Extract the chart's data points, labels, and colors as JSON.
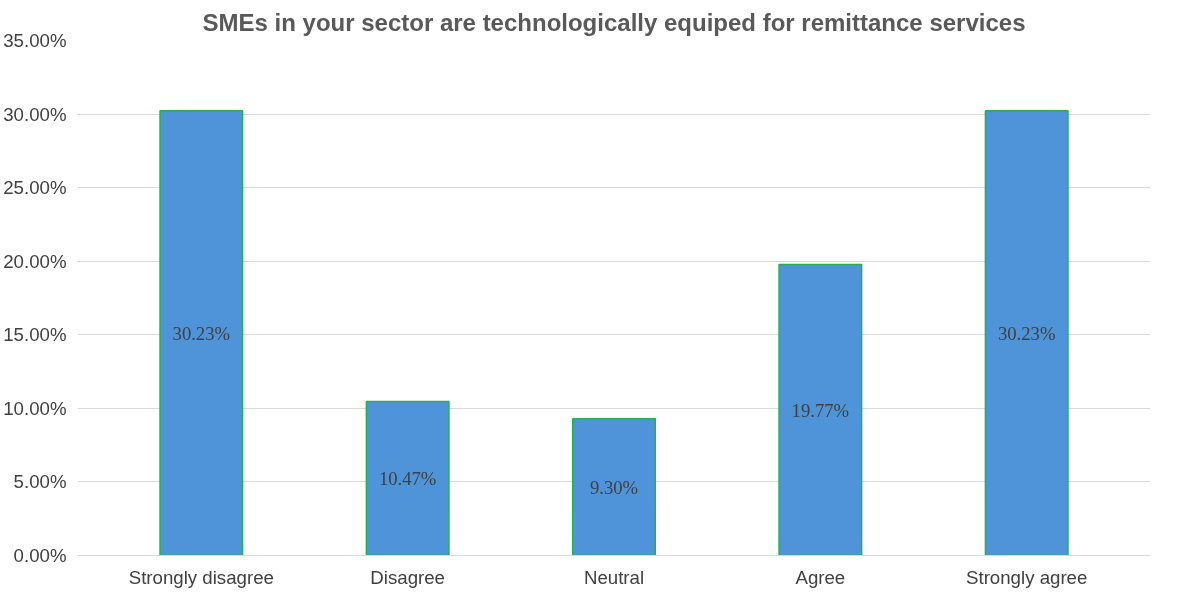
{
  "chart_data": {
    "type": "bar",
    "title": "SMEs in your sector are technologically equiped for remittance services",
    "categories": [
      "Strongly disagree",
      "Disagree",
      "Neutral",
      "Agree",
      "Strongly agree"
    ],
    "values": [
      30.23,
      10.47,
      9.3,
      19.77,
      30.23
    ],
    "value_labels": [
      "30.23%",
      "10.47%",
      "9.30%",
      "19.77%",
      "30.23%"
    ],
    "color": "#4f94d9",
    "ylim": [
      0,
      35
    ],
    "yticks": [
      {
        "value": 0,
        "label": "0.00%"
      },
      {
        "value": 5,
        "label": "5.00%"
      },
      {
        "value": 10,
        "label": "10.00%"
      },
      {
        "value": 15,
        "label": "15.00%"
      },
      {
        "value": 20,
        "label": "20.00%"
      },
      {
        "value": 25,
        "label": "25.00%"
      },
      {
        "value": 30,
        "label": "30.00%"
      },
      {
        "value": 35,
        "label": "35.00%"
      }
    ],
    "grid": "y"
  }
}
